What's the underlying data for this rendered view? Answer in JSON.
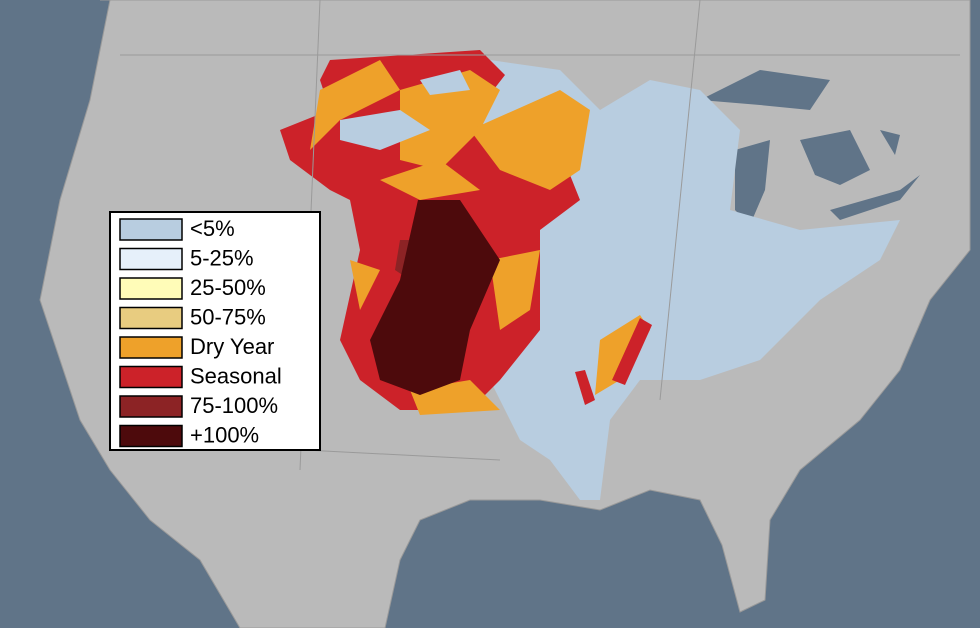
{
  "legend": {
    "items": [
      {
        "label": "<5%",
        "color": "#b8cde0"
      },
      {
        "label": "5-25%",
        "color": "#e6f0fa"
      },
      {
        "label": "25-50%",
        "color": "#fffcb8"
      },
      {
        "label": "50-75%",
        "color": "#e8cc80"
      },
      {
        "label": "Dry Year",
        "color": "#eea12a"
      },
      {
        "label": "Seasonal",
        "color": "#cc2229"
      },
      {
        "label": "75-100%",
        "color": "#8c2325"
      },
      {
        "label": "+100%",
        "color": "#4d0a0c"
      }
    ]
  }
}
